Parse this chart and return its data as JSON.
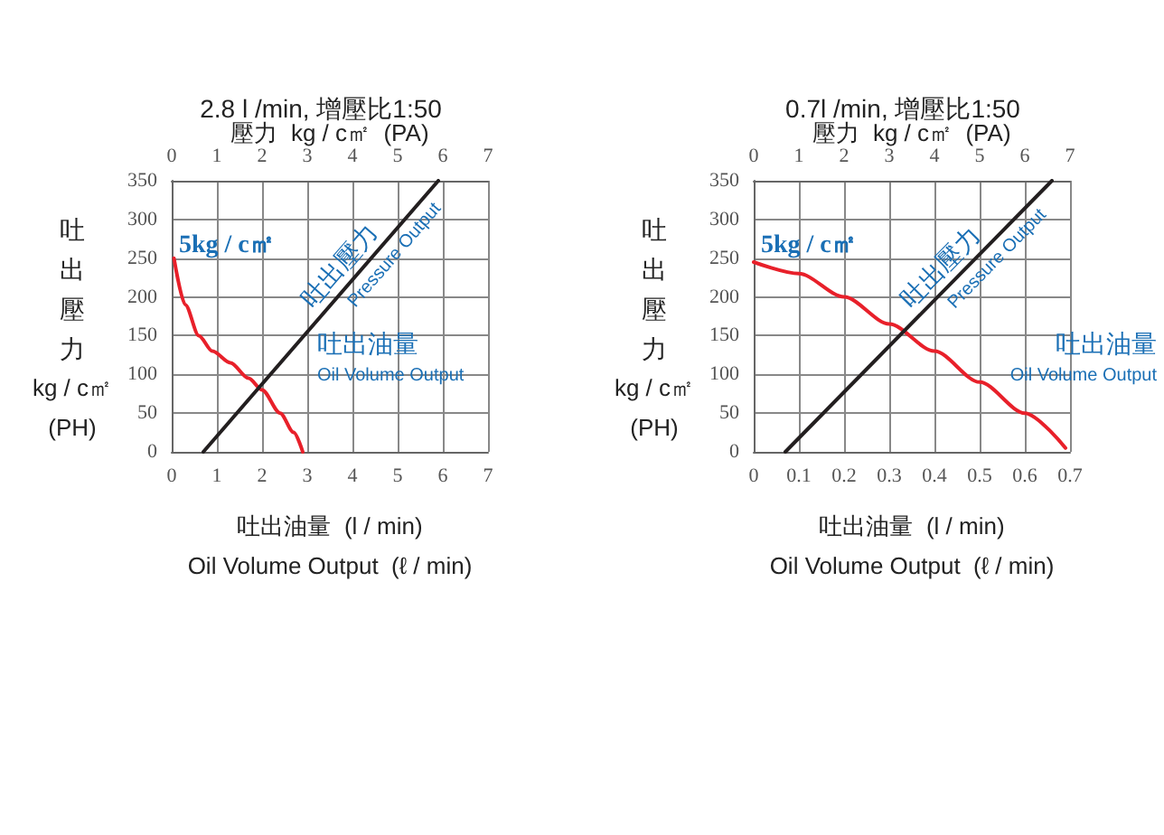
{
  "chart_data": [
    {
      "type": "line",
      "title": "2.8 l /min, 增壓比1:50",
      "x2label": "壓力  kg / c㎡  (PA)",
      "xlabel": "吐出油量  (l / min)\nOil Volume Output  (ℓ / min)",
      "ylabel": "吐出壓力\nkg / c㎡\n(PH)",
      "xlim": [
        0,
        7
      ],
      "xticks": [
        0,
        1,
        2,
        3,
        4,
        5,
        6,
        7
      ],
      "x2lim": [
        0,
        7
      ],
      "x2ticks": [
        0,
        1,
        2,
        3,
        4,
        5,
        6,
        7
      ],
      "ylim": [
        0,
        350
      ],
      "yticks": [
        0,
        50,
        100,
        150,
        200,
        250,
        300,
        350
      ],
      "grid": true,
      "marker": "none",
      "line_style": "solid",
      "series": [
        {
          "color": "#e8202a",
          "x": [
            0.05,
            0.3,
            0.6,
            0.9,
            1.3,
            1.7,
            2.0,
            2.4,
            2.7,
            2.9
          ],
          "values": [
            250,
            190,
            150,
            130,
            115,
            95,
            80,
            50,
            25,
            0
          ]
        },
        {
          "color": "#231f20",
          "axis": "x2",
          "x": [
            0.7,
            5.9
          ],
          "values": [
            0,
            350
          ]
        }
      ],
      "annotations": [
        "5kg / c㎡",
        "吐出壓力",
        "Pressure Output",
        "吐出油量",
        "Oil Volume Output"
      ]
    },
    {
      "type": "line",
      "title": "0.7l /min, 增壓比1:50",
      "x2label": "壓力  kg / c㎡  (PA)",
      "xlabel": "吐出油量  (l / min)\nOil Volume Output  (ℓ / min)",
      "ylabel": "吐出壓力\nkg / c㎡\n(PH)",
      "xlim": [
        0,
        0.7
      ],
      "xticks": [
        0,
        0.1,
        0.2,
        0.3,
        0.4,
        0.5,
        0.6,
        0.7
      ],
      "x2lim": [
        0,
        7
      ],
      "x2ticks": [
        0,
        1,
        2,
        3,
        4,
        5,
        6,
        7
      ],
      "ylim": [
        0,
        350
      ],
      "yticks": [
        0,
        50,
        100,
        150,
        200,
        250,
        300,
        350
      ],
      "grid": true,
      "marker": "none",
      "line_style": "solid",
      "series": [
        {
          "color": "#e8202a",
          "x": [
            0,
            0.1,
            0.2,
            0.3,
            0.4,
            0.5,
            0.6,
            0.69
          ],
          "values": [
            245,
            230,
            200,
            165,
            130,
            90,
            50,
            5
          ]
        },
        {
          "color": "#231f20",
          "axis": "x2",
          "x": [
            0.7,
            6.6
          ],
          "values": [
            0,
            350
          ]
        }
      ],
      "annotations": [
        "5kg / c㎡",
        "吐出壓力",
        "Pressure Output",
        "吐出油量",
        "Oil Volume Output"
      ]
    }
  ]
}
